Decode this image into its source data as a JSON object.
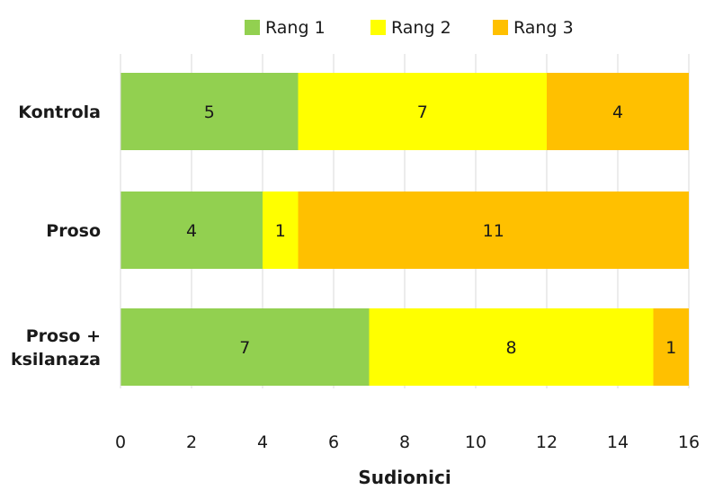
{
  "chart_data": {
    "type": "bar",
    "orientation": "horizontal",
    "stacked": true,
    "categories": [
      "Kontrola",
      "Proso",
      "Proso +\nksilanaza"
    ],
    "series": [
      {
        "name": "Rang 1",
        "color": "#92d050",
        "values": [
          5,
          4,
          7
        ]
      },
      {
        "name": "Rang 2",
        "color": "#ffff00",
        "values": [
          7,
          1,
          8
        ]
      },
      {
        "name": "Rang 3",
        "color": "#ffc000",
        "values": [
          4,
          11,
          1
        ]
      }
    ],
    "xlabel": "Sudionici",
    "ylabel": "",
    "title": "",
    "xlim": [
      0,
      16
    ],
    "xticks": [
      0,
      2,
      4,
      6,
      8,
      10,
      12,
      14,
      16
    ],
    "grid": "vertical",
    "legend": "top-center",
    "data_labels": true
  }
}
